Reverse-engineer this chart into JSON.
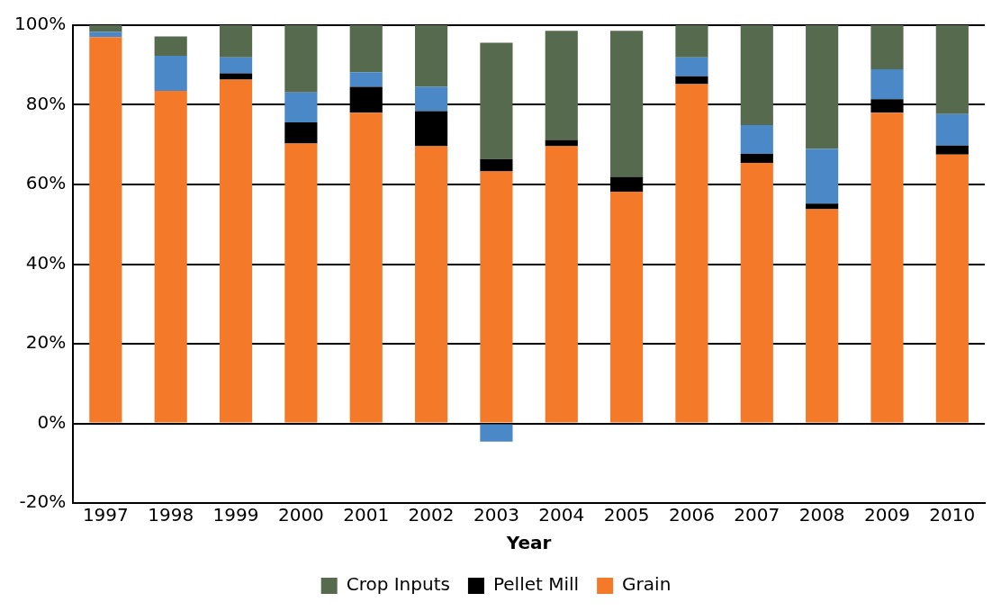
{
  "chart_data": {
    "type": "bar",
    "stacked": true,
    "xlabel": "Year",
    "categories": [
      "1997",
      "1998",
      "1999",
      "2000",
      "2001",
      "2002",
      "2003",
      "2004",
      "2005",
      "2006",
      "2007",
      "2008",
      "2009",
      "2010"
    ],
    "series": [
      {
        "name": "Grain",
        "color": "#f47a2a",
        "values": [
          97,
          83.5,
          86.3,
          70.3,
          78,
          69.6,
          63.3,
          69.6,
          58.2,
          85.2,
          65.4,
          53.8,
          78,
          67.5
        ]
      },
      {
        "name": "Pellet Mill",
        "color": "#000000",
        "values": [
          0,
          0,
          1.6,
          5.3,
          6.5,
          8.8,
          3.1,
          1.6,
          3.7,
          2,
          2.3,
          1.4,
          3.4,
          2.3
        ]
      },
      {
        "color": "#4a88c8",
        "values": [
          1.3,
          8.8,
          4,
          7.5,
          3.7,
          6.1,
          -4.6,
          0,
          0,
          4.7,
          7.2,
          13.7,
          7.5,
          7.9
        ]
      },
      {
        "name": "Crop Inputs",
        "color": "#566b4e",
        "values": [
          1.7,
          4.9,
          8.1,
          16.9,
          11.8,
          15.5,
          29.2,
          27.4,
          36.7,
          8.1,
          25.1,
          31.1,
          11.1,
          22.3
        ]
      }
    ],
    "ylim": [
      -20,
      100
    ],
    "yticks": [
      {
        "value": -20,
        "label": "-20%"
      },
      {
        "value": 0,
        "label": "0%"
      },
      {
        "value": 20,
        "label": "20%"
      },
      {
        "value": 40,
        "label": "40%"
      },
      {
        "value": 60,
        "label": "60%"
      },
      {
        "value": 80,
        "label": "80%"
      },
      {
        "value": 100,
        "label": "100%"
      }
    ],
    "grid": "y",
    "legend": "bottom"
  }
}
